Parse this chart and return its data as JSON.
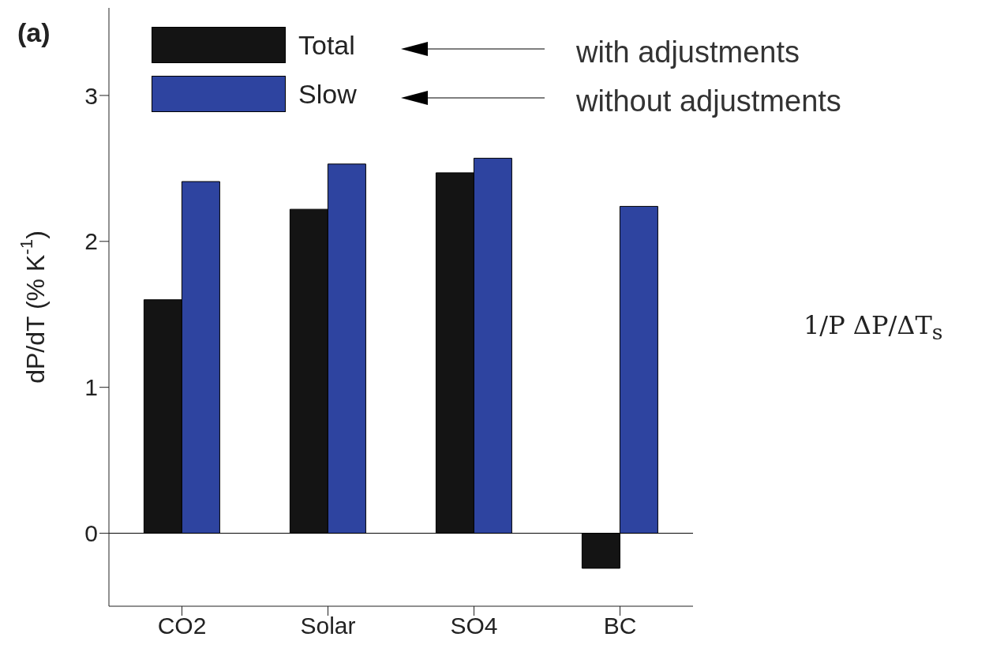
{
  "chart_data": {
    "type": "bar",
    "ylabel": "dP/dT (% K$^{-1}$)",
    "categories": [
      "CO2",
      "Solar",
      "SO4",
      "BC"
    ],
    "series": [
      {
        "name": "Total",
        "color": "#141414",
        "values": [
          1.6,
          2.22,
          2.47,
          -0.24
        ]
      },
      {
        "name": "Slow",
        "color": "#2e44a0",
        "values": [
          2.41,
          2.53,
          2.57,
          2.24
        ]
      }
    ],
    "ylim": [
      -0.5,
      3.6
    ],
    "yticks": [
      0,
      1,
      2,
      3
    ],
    "grid": false,
    "legend": "top left",
    "ref_lines": [
      {
        "axis": "y",
        "value": 0,
        "color": "#000000"
      }
    ],
    "annotations": [
      "(a)",
      "with adjustments",
      "without adjustments",
      "1/P ΔP/ΔT$_{s}$"
    ]
  }
}
